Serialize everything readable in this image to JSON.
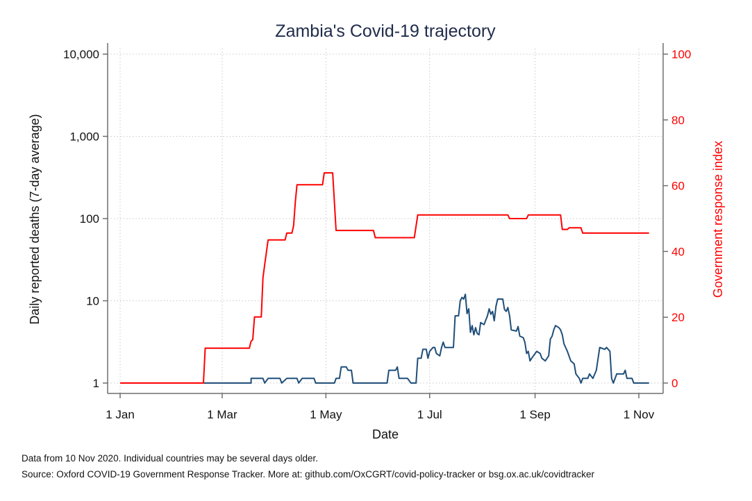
{
  "chart_data": {
    "type": "line",
    "title": "Zambia's Covid-19 trajectory",
    "xlabel": "Date",
    "ylabel": "Daily reported deaths (7-day average)",
    "y2label": "Government response index",
    "y_scale": "log",
    "ylim": [
      1,
      10000
    ],
    "y2lim": [
      0,
      100
    ],
    "xlim": [
      "2020-01-01",
      "2020-11-10"
    ],
    "grid": true,
    "x_ticks": [
      {
        "date": "2020-01-01",
        "label": "1 Jan"
      },
      {
        "date": "2020-03-01",
        "label": "1 Mar"
      },
      {
        "date": "2020-05-01",
        "label": "1 May"
      },
      {
        "date": "2020-07-01",
        "label": "1 Jul"
      },
      {
        "date": "2020-09-01",
        "label": "1 Sep"
      },
      {
        "date": "2020-11-01",
        "label": "1 Nov"
      }
    ],
    "y_ticks": [
      {
        "value": 1,
        "label": "1"
      },
      {
        "value": 10,
        "label": "10"
      },
      {
        "value": 100,
        "label": "100"
      },
      {
        "value": 1000,
        "label": "1,000"
      },
      {
        "value": 10000,
        "label": "10,000"
      }
    ],
    "y2_ticks": [
      {
        "value": 0,
        "label": "0"
      },
      {
        "value": 20,
        "label": "20"
      },
      {
        "value": 40,
        "label": "40"
      },
      {
        "value": 60,
        "label": "60"
      },
      {
        "value": 80,
        "label": "80"
      },
      {
        "value": 100,
        "label": "100"
      }
    ],
    "series": [
      {
        "axis": "left",
        "color": "#1f4e79",
        "points": [
          [
            "2020-01-01",
            1
          ],
          [
            "2020-03-18",
            1
          ],
          [
            "2020-03-18",
            1.14
          ],
          [
            "2020-03-25",
            1.14
          ],
          [
            "2020-03-26",
            1
          ],
          [
            "2020-03-28",
            1.14
          ],
          [
            "2020-04-04",
            1.14
          ],
          [
            "2020-04-05",
            1
          ],
          [
            "2020-04-08",
            1.14
          ],
          [
            "2020-04-14",
            1.14
          ],
          [
            "2020-04-15",
            1
          ],
          [
            "2020-04-17",
            1.14
          ],
          [
            "2020-04-24",
            1.14
          ],
          [
            "2020-04-25",
            1
          ],
          [
            "2020-05-06",
            1
          ],
          [
            "2020-05-07",
            1.14
          ],
          [
            "2020-05-09",
            1.14
          ],
          [
            "2020-05-10",
            1.57
          ],
          [
            "2020-05-13",
            1.57
          ],
          [
            "2020-05-14",
            1.43
          ],
          [
            "2020-05-16",
            1.43
          ],
          [
            "2020-05-17",
            1
          ],
          [
            "2020-06-06",
            1
          ],
          [
            "2020-06-07",
            1.43
          ],
          [
            "2020-06-11",
            1.43
          ],
          [
            "2020-06-12",
            1.57
          ],
          [
            "2020-06-13",
            1.14
          ],
          [
            "2020-06-15",
            1.14
          ],
          [
            "2020-06-16",
            1.14
          ],
          [
            "2020-06-18",
            1.14
          ],
          [
            "2020-06-20",
            1
          ],
          [
            "2020-06-23",
            1
          ],
          [
            "2020-06-24",
            2
          ],
          [
            "2020-06-26",
            2
          ],
          [
            "2020-06-27",
            2.57
          ],
          [
            "2020-06-29",
            2.57
          ],
          [
            "2020-06-30",
            2
          ],
          [
            "2020-07-01",
            2.43
          ],
          [
            "2020-07-03",
            2.71
          ],
          [
            "2020-07-04",
            2.71
          ],
          [
            "2020-07-05",
            2.29
          ],
          [
            "2020-07-07",
            2.14
          ],
          [
            "2020-07-08",
            2.71
          ],
          [
            "2020-07-09",
            3.14
          ],
          [
            "2020-07-10",
            2.71
          ],
          [
            "2020-07-15",
            2.71
          ],
          [
            "2020-07-16",
            6.57
          ],
          [
            "2020-07-18",
            6.57
          ],
          [
            "2020-07-19",
            10
          ],
          [
            "2020-07-20",
            11
          ],
          [
            "2020-07-21",
            10.5
          ],
          [
            "2020-07-22",
            12
          ],
          [
            "2020-07-23",
            7
          ],
          [
            "2020-07-24",
            8
          ],
          [
            "2020-07-25",
            4.14
          ],
          [
            "2020-07-26",
            5
          ],
          [
            "2020-07-27",
            3.86
          ],
          [
            "2020-07-28",
            4.71
          ],
          [
            "2020-07-29",
            4
          ],
          [
            "2020-07-30",
            3.86
          ],
          [
            "2020-07-31",
            5.43
          ],
          [
            "2020-08-02",
            5.14
          ],
          [
            "2020-08-04",
            6.57
          ],
          [
            "2020-08-05",
            8
          ],
          [
            "2020-08-06",
            6.86
          ],
          [
            "2020-08-07",
            7.43
          ],
          [
            "2020-08-08",
            5.71
          ],
          [
            "2020-08-09",
            8.57
          ],
          [
            "2020-08-10",
            10.5
          ],
          [
            "2020-08-13",
            10.5
          ],
          [
            "2020-08-14",
            7.86
          ],
          [
            "2020-08-15",
            7.43
          ],
          [
            "2020-08-16",
            8.29
          ],
          [
            "2020-08-17",
            6.57
          ],
          [
            "2020-08-18",
            4.43
          ],
          [
            "2020-08-21",
            4.29
          ],
          [
            "2020-08-22",
            4.86
          ],
          [
            "2020-08-23",
            3.71
          ],
          [
            "2020-08-25",
            3.57
          ],
          [
            "2020-08-26",
            3.14
          ],
          [
            "2020-08-27",
            2.29
          ],
          [
            "2020-08-28",
            2.43
          ],
          [
            "2020-08-29",
            1.86
          ],
          [
            "2020-08-30",
            2
          ],
          [
            "2020-08-31",
            2.14
          ],
          [
            "2020-09-02",
            2.43
          ],
          [
            "2020-09-04",
            2.29
          ],
          [
            "2020-09-05",
            2
          ],
          [
            "2020-09-07",
            1.86
          ],
          [
            "2020-09-09",
            2.14
          ],
          [
            "2020-09-10",
            3.43
          ],
          [
            "2020-09-11",
            3.71
          ],
          [
            "2020-09-12",
            4.43
          ],
          [
            "2020-09-13",
            5
          ],
          [
            "2020-09-15",
            4.71
          ],
          [
            "2020-09-16",
            4.43
          ],
          [
            "2020-09-17",
            3.86
          ],
          [
            "2020-09-18",
            3
          ],
          [
            "2020-09-20",
            2.43
          ],
          [
            "2020-09-22",
            1.86
          ],
          [
            "2020-09-24",
            1.71
          ],
          [
            "2020-09-25",
            1.29
          ],
          [
            "2020-09-27",
            1.14
          ],
          [
            "2020-09-28",
            1
          ],
          [
            "2020-09-29",
            1.14
          ],
          [
            "2020-10-02",
            1.14
          ],
          [
            "2020-10-03",
            1.29
          ],
          [
            "2020-10-05",
            1.14
          ],
          [
            "2020-10-07",
            1.43
          ],
          [
            "2020-10-09",
            2.71
          ],
          [
            "2020-10-12",
            2.57
          ],
          [
            "2020-10-13",
            2.71
          ],
          [
            "2020-10-15",
            2.43
          ],
          [
            "2020-10-16",
            1.14
          ],
          [
            "2020-10-17",
            1
          ],
          [
            "2020-10-19",
            1.29
          ],
          [
            "2020-10-23",
            1.29
          ],
          [
            "2020-10-24",
            1.43
          ],
          [
            "2020-10-25",
            1.14
          ],
          [
            "2020-10-28",
            1.14
          ],
          [
            "2020-10-29",
            1
          ],
          [
            "2020-11-07",
            1
          ]
        ]
      },
      {
        "axis": "right",
        "color": "#ff0000",
        "points": [
          [
            "2020-01-01",
            0
          ],
          [
            "2020-02-19",
            0
          ],
          [
            "2020-02-20",
            10.6
          ],
          [
            "2020-03-17",
            10.6
          ],
          [
            "2020-03-18",
            12.7
          ],
          [
            "2020-03-19",
            13.2
          ],
          [
            "2020-03-20",
            20.1
          ],
          [
            "2020-03-24",
            20.1
          ],
          [
            "2020-03-25",
            32
          ],
          [
            "2020-03-26",
            36
          ],
          [
            "2020-03-28",
            43.5
          ],
          [
            "2020-04-07",
            43.5
          ],
          [
            "2020-04-08",
            45.6
          ],
          [
            "2020-04-11",
            45.6
          ],
          [
            "2020-04-12",
            47.8
          ],
          [
            "2020-04-13",
            55
          ],
          [
            "2020-04-14",
            60.3
          ],
          [
            "2020-04-29",
            60.3
          ],
          [
            "2020-04-30",
            63.9
          ],
          [
            "2020-05-05",
            63.9
          ],
          [
            "2020-05-07",
            46.4
          ],
          [
            "2020-05-29",
            46.4
          ],
          [
            "2020-05-30",
            44.2
          ],
          [
            "2020-06-22",
            44.2
          ],
          [
            "2020-06-24",
            51.1
          ],
          [
            "2020-08-16",
            51.1
          ],
          [
            "2020-08-17",
            50
          ],
          [
            "2020-08-27",
            50
          ],
          [
            "2020-08-28",
            51.1
          ],
          [
            "2020-09-16",
            51.1
          ],
          [
            "2020-09-17",
            46.7
          ],
          [
            "2020-09-20",
            46.7
          ],
          [
            "2020-09-21",
            47.2
          ],
          [
            "2020-09-28",
            47.2
          ],
          [
            "2020-09-29",
            45.6
          ],
          [
            "2020-11-07",
            45.6
          ]
        ]
      }
    ]
  },
  "notes": {
    "line1": "Data from 10 Nov 2020. Individual countries may be several days older.",
    "line2": "Source: Oxford COVID-19 Government Response Tracker. More at: github.com/OxCGRT/covid-policy-tracker or bsg.ox.ac.uk/covidtracker"
  },
  "colors": {
    "title": "#1e2b4a",
    "deaths": "#1f4e79",
    "response": "#ff0000",
    "axis": "#6e6e6e",
    "grid": "#c8c8c8"
  }
}
